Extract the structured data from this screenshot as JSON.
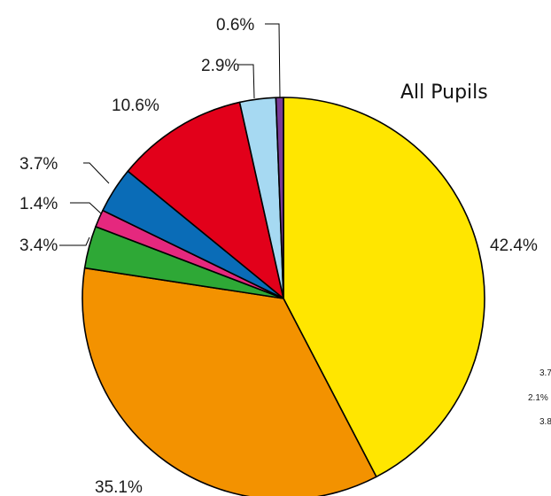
{
  "chart_data": {
    "type": "pie",
    "title": "All Pupils",
    "start_angle_deg": 0,
    "direction": "clockwise",
    "slices": [
      {
        "value": 42.4,
        "label": "42.4%",
        "color": "#FFE600"
      },
      {
        "value": 35.1,
        "label": "35.1%",
        "color": "#F39200"
      },
      {
        "value": 3.4,
        "label": "3.4%",
        "color": "#2EA836"
      },
      {
        "value": 1.4,
        "label": "1.4%",
        "color": "#E5287E"
      },
      {
        "value": 3.7,
        "label": "3.7%",
        "color": "#0A6CB7"
      },
      {
        "value": 10.6,
        "label": "10.6%",
        "color": "#E2001A"
      },
      {
        "value": 2.9,
        "label": "2.9%",
        "color": "#A6D9F2"
      },
      {
        "value": 0.6,
        "label": "0.6%",
        "color": "#7A3A96"
      }
    ],
    "clipped_labels": [
      "3.7",
      "2.1%",
      "3.8"
    ]
  }
}
